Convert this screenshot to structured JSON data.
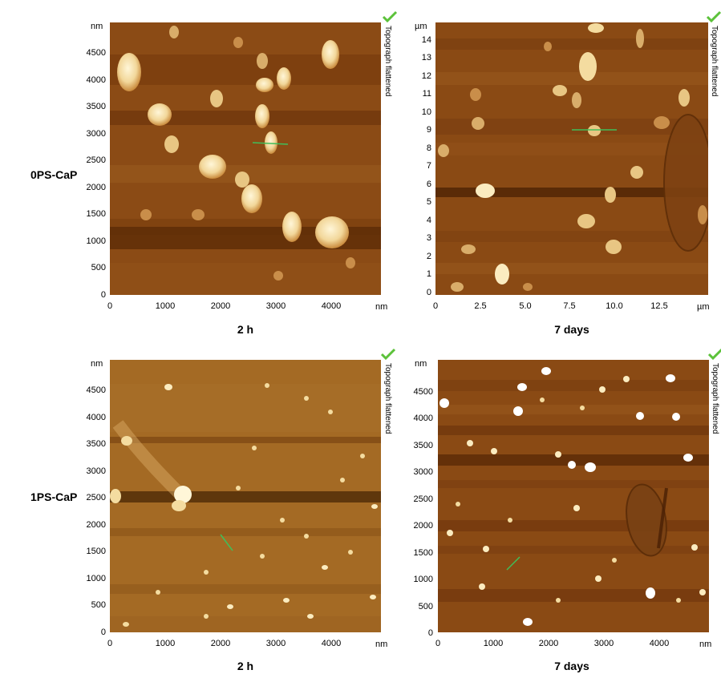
{
  "rows": [
    {
      "label": "0PS-CaP"
    },
    {
      "label": "1PS-CaP"
    }
  ],
  "panels": [
    {
      "id": "p1",
      "caption": "2 h",
      "side_label": "Topograph flattened",
      "y_unit": "nm",
      "x_unit": "nm",
      "y_ticks": [
        "4500",
        "4000",
        "3500",
        "3000",
        "2500",
        "2000",
        "1500",
        "1000",
        "500",
        "0"
      ],
      "x_ticks": [
        "0",
        "1000",
        "2000",
        "3000",
        "4000"
      ],
      "scan_size": 4900,
      "icon": "checkmark-icon"
    },
    {
      "id": "p2",
      "caption": "7 days",
      "side_label": "Topograph flattened",
      "y_unit": "µm",
      "x_unit": "µm",
      "y_ticks": [
        "14",
        "13",
        "12",
        "11",
        "10",
        "9",
        "8",
        "7",
        "6",
        "5",
        "4",
        "3",
        "2",
        "1",
        "0"
      ],
      "x_ticks": [
        "0",
        "2.5",
        "5.0",
        "7.5",
        "10.0",
        "12.5"
      ],
      "scan_size": 15,
      "icon": "checkmark-icon"
    },
    {
      "id": "p3",
      "caption": "2 h",
      "side_label": "Topograph flattened",
      "y_unit": "nm",
      "x_unit": "nm",
      "y_ticks": [
        "4500",
        "4000",
        "3500",
        "3000",
        "2500",
        "2000",
        "1500",
        "1000",
        "500",
        "0"
      ],
      "x_ticks": [
        "0",
        "1000",
        "2000",
        "3000",
        "4000"
      ],
      "scan_size": 4900,
      "icon": "checkmark-icon"
    },
    {
      "id": "p4",
      "caption": "7 days",
      "side_label": "Topograph flattened",
      "y_unit": "nm",
      "x_unit": "nm",
      "y_ticks": [
        "4500",
        "4000",
        "3500",
        "3000",
        "2500",
        "2000",
        "1500",
        "1000",
        "500",
        "0"
      ],
      "x_ticks": [
        "0",
        "1000",
        "2000",
        "3000",
        "4000"
      ],
      "scan_size": 4900,
      "icon": "checkmark-icon"
    }
  ],
  "colors": {
    "background": "#8a4a14",
    "particle": "#f6e2ad",
    "line_marker": "#3fbf5a",
    "check": "#5cc23a"
  }
}
